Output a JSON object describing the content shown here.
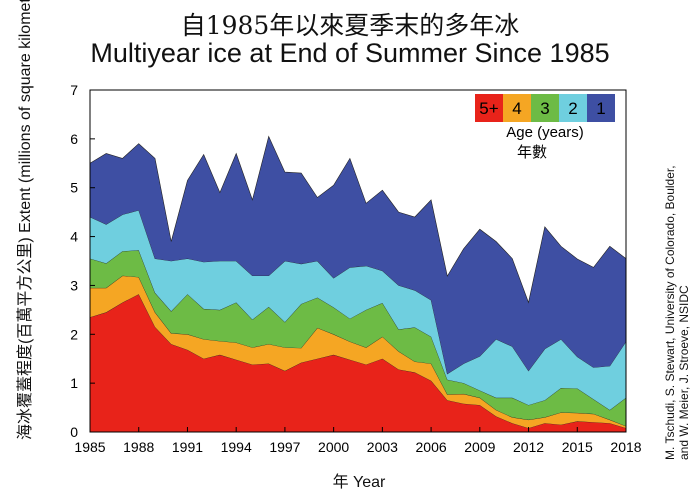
{
  "title": {
    "line1": "自1985年以來夏季末的多年冰",
    "line2": "Multiyear ice at End of Summer Since 1985"
  },
  "credit": {
    "line1": "M. Tschudi, S. Stewart, University of Colorado, Boulder,",
    "line2": "and W. Meier, J. Stroeve, NSIDC"
  },
  "chart_data": {
    "type": "area",
    "stacked": true,
    "xlabel": "年  Year",
    "ylabel": "海冰覆蓋程度(百萬平方公里) Extent (millions of square kilometers)",
    "xlim": [
      1985,
      2018
    ],
    "ylim": [
      0,
      7
    ],
    "x_ticks": [
      1985,
      1988,
      1991,
      1994,
      1997,
      2000,
      2003,
      2006,
      2009,
      2012,
      2015,
      2018
    ],
    "y_ticks": [
      0,
      1,
      2,
      3,
      4,
      5,
      6,
      7
    ],
    "grid": false,
    "legend": {
      "placement": "top-right",
      "title": "Age (years)",
      "title_zh": "年數",
      "entries": [
        "5+",
        "4",
        "3",
        "2",
        "1"
      ]
    },
    "colors": {
      "5+": "#e8231a",
      "4": "#f5a623",
      "3": "#6dbb45",
      "2": "#6fcfdf",
      "1": "#3e4fa3"
    },
    "x": [
      1985,
      1986,
      1987,
      1988,
      1989,
      1990,
      1991,
      1992,
      1993,
      1994,
      1995,
      1996,
      1997,
      1998,
      1999,
      2000,
      2001,
      2002,
      2003,
      2004,
      2005,
      2006,
      2007,
      2008,
      2009,
      2010,
      2011,
      2012,
      2013,
      2014,
      2015,
      2016,
      2017,
      2018
    ],
    "series": [
      {
        "name": "5+",
        "values": [
          2.35,
          2.45,
          2.65,
          2.82,
          2.15,
          1.8,
          1.68,
          1.5,
          1.58,
          1.48,
          1.38,
          1.4,
          1.25,
          1.42,
          1.5,
          1.58,
          1.48,
          1.38,
          1.5,
          1.28,
          1.22,
          1.05,
          0.65,
          0.58,
          0.55,
          0.32,
          0.18,
          0.08,
          0.18,
          0.15,
          0.22,
          0.2,
          0.18,
          0.08
        ]
      },
      {
        "name": "4",
        "values": [
          0.6,
          0.5,
          0.55,
          0.35,
          0.3,
          0.22,
          0.32,
          0.4,
          0.28,
          0.35,
          0.35,
          0.4,
          0.48,
          0.3,
          0.63,
          0.42,
          0.37,
          0.35,
          0.45,
          0.37,
          0.22,
          0.35,
          0.12,
          0.2,
          0.15,
          0.13,
          0.12,
          0.17,
          0.12,
          0.25,
          0.17,
          0.17,
          0.07,
          0.04
        ]
      },
      {
        "name": "3",
        "values": [
          0.6,
          0.5,
          0.5,
          0.55,
          0.4,
          0.45,
          0.82,
          0.62,
          0.64,
          0.82,
          0.57,
          0.76,
          0.52,
          0.9,
          0.62,
          0.55,
          0.47,
          0.77,
          0.69,
          0.45,
          0.7,
          0.55,
          0.3,
          0.22,
          0.15,
          0.25,
          0.4,
          0.3,
          0.35,
          0.5,
          0.5,
          0.3,
          0.2,
          0.58
        ]
      },
      {
        "name": "2",
        "values": [
          0.85,
          0.8,
          0.75,
          0.82,
          0.7,
          1.03,
          0.73,
          0.96,
          1.0,
          0.85,
          0.9,
          0.64,
          1.25,
          0.82,
          0.75,
          0.6,
          1.05,
          0.9,
          0.66,
          0.9,
          0.76,
          0.75,
          0.12,
          0.4,
          0.7,
          1.2,
          1.05,
          0.7,
          1.05,
          1.0,
          0.65,
          0.65,
          0.9,
          1.15
        ]
      },
      {
        "name": "1",
        "values": [
          1.1,
          1.45,
          1.15,
          1.36,
          2.05,
          0.4,
          1.6,
          2.2,
          1.4,
          2.2,
          1.55,
          2.85,
          1.82,
          1.86,
          1.3,
          1.9,
          2.23,
          1.28,
          1.65,
          1.5,
          1.5,
          2.05,
          2.0,
          2.35,
          2.6,
          2.0,
          1.8,
          1.4,
          2.5,
          1.9,
          2.0,
          2.05,
          2.45,
          1.7
        ]
      }
    ]
  }
}
